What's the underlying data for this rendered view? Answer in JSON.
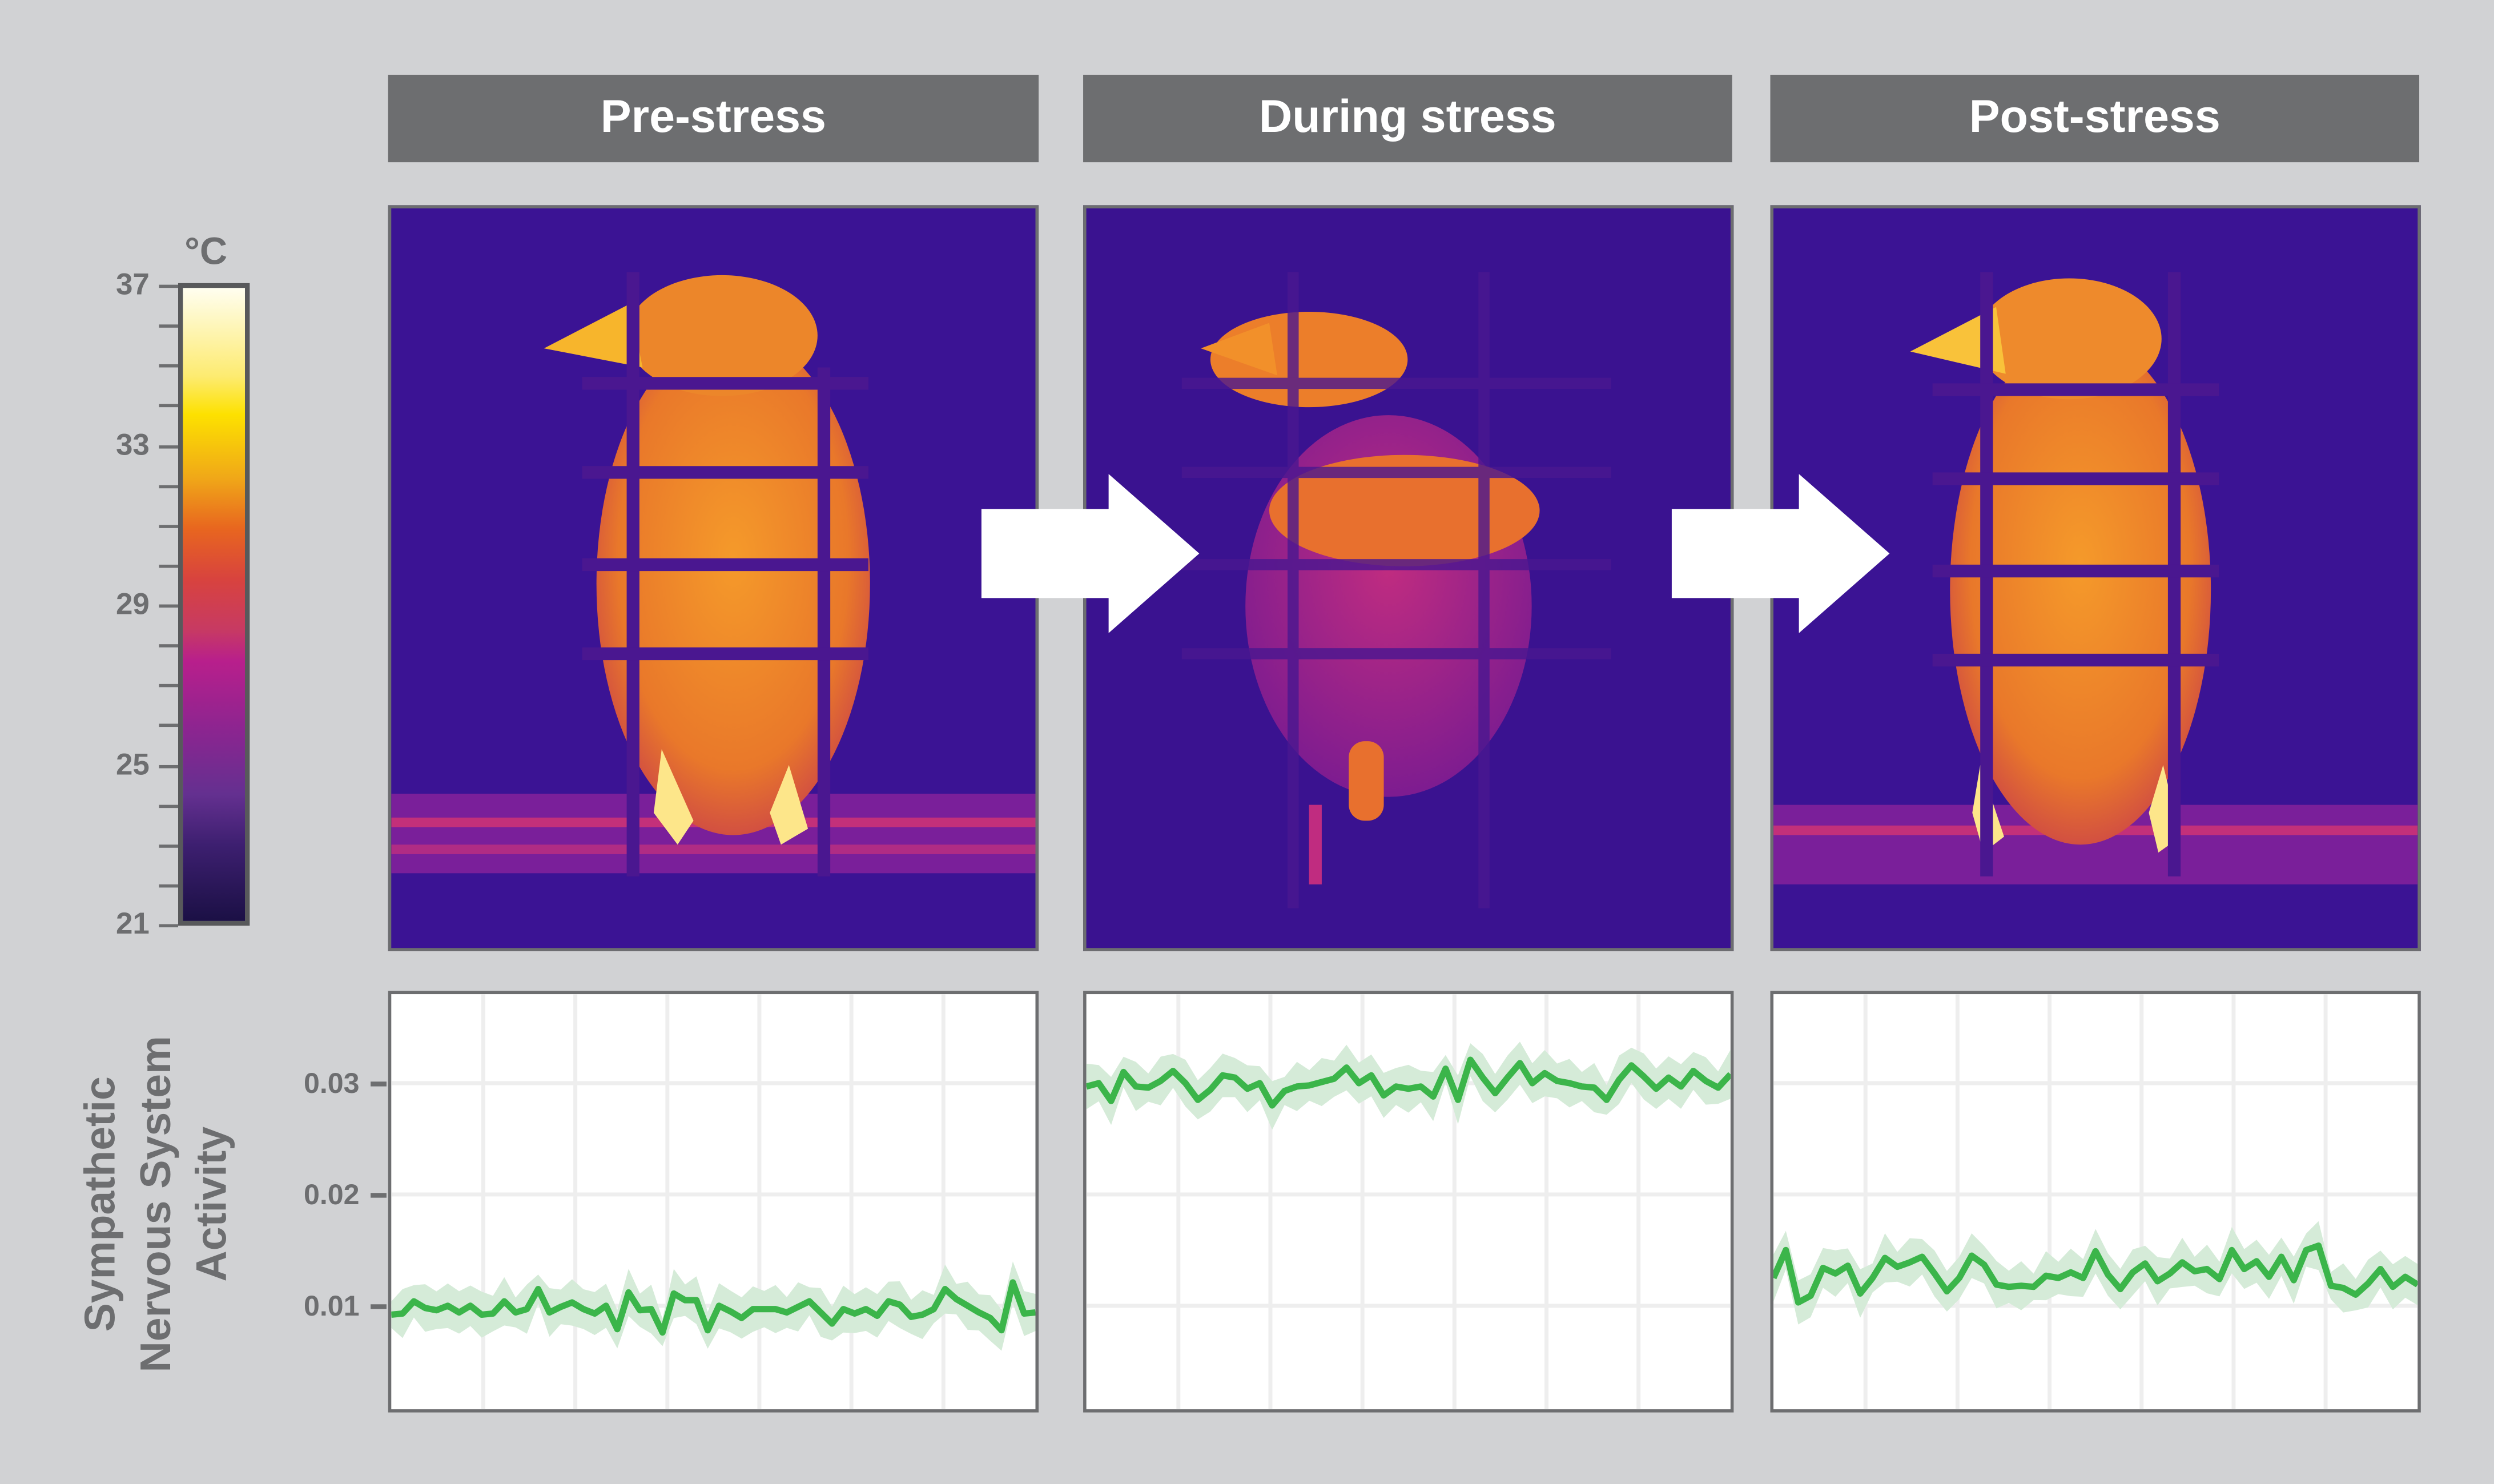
{
  "panels": [
    {
      "title": "Pre-stress"
    },
    {
      "title": "During stress"
    },
    {
      "title": "Post-stress"
    }
  ],
  "colorbar": {
    "unit": "°C",
    "tick_labels": [
      "37",
      "33",
      "29",
      "25",
      "21"
    ],
    "range": [
      21,
      37
    ],
    "colormap": "inferno"
  },
  "colors": {
    "line": "#3bb54a",
    "band": "#d5ebd8",
    "header_bg": "#6d6e70",
    "background": "#d1d2d4"
  },
  "chart_data": {
    "type": "line",
    "ylabel": [
      "Sympathetic",
      "Nervous System",
      "Activity"
    ],
    "ylim": [
      0.0007,
      0.038
    ],
    "yticks": [
      0.01,
      0.02,
      0.03
    ],
    "ytick_labels": [
      "0.01",
      "0.02",
      "0.03"
    ],
    "grid": true,
    "band_halfwidth": 0.0017,
    "series": [
      {
        "name": "Pre-stress",
        "values": [
          0.0092,
          0.0093,
          0.0104,
          0.0098,
          0.0096,
          0.01,
          0.0094,
          0.01,
          0.0092,
          0.0093,
          0.0104,
          0.0094,
          0.0097,
          0.0115,
          0.0094,
          0.0099,
          0.0103,
          0.0097,
          0.0093,
          0.01,
          0.0079,
          0.0112,
          0.0096,
          0.0097,
          0.0076,
          0.0111,
          0.0105,
          0.0105,
          0.0078,
          0.01,
          0.0095,
          0.0089,
          0.0097,
          0.0097,
          0.0097,
          0.0094,
          0.0099,
          0.0104,
          0.0094,
          0.0084,
          0.0097,
          0.0093,
          0.0097,
          0.0091,
          0.0104,
          0.0101,
          0.009,
          0.0092,
          0.0097,
          0.0115,
          0.0106,
          0.01,
          0.0094,
          0.0089,
          0.0078,
          0.0121,
          0.0093,
          0.0094
        ]
      },
      {
        "name": "During stress",
        "values": [
          0.0297,
          0.03,
          0.0284,
          0.031,
          0.0297,
          0.0296,
          0.0302,
          0.0311,
          0.03,
          0.0285,
          0.0294,
          0.0307,
          0.0305,
          0.0295,
          0.03,
          0.028,
          0.0293,
          0.0297,
          0.0298,
          0.0301,
          0.0304,
          0.0314,
          0.03,
          0.0307,
          0.0289,
          0.0297,
          0.0295,
          0.0297,
          0.0288,
          0.0313,
          0.0285,
          0.0321,
          0.0305,
          0.0291,
          0.0305,
          0.0318,
          0.03,
          0.0309,
          0.0302,
          0.03,
          0.0297,
          0.0296,
          0.0285,
          0.0303,
          0.0316,
          0.0306,
          0.0295,
          0.0305,
          0.0297,
          0.0311,
          0.0302,
          0.0296,
          0.0308
        ]
      },
      {
        "name": "Post-stress",
        "values": [
          0.0125,
          0.015,
          0.0103,
          0.0109,
          0.0134,
          0.0129,
          0.0136,
          0.0111,
          0.0125,
          0.0143,
          0.0135,
          0.0139,
          0.0144,
          0.0129,
          0.0113,
          0.0125,
          0.0145,
          0.0137,
          0.0119,
          0.0117,
          0.0118,
          0.0117,
          0.0127,
          0.0125,
          0.013,
          0.0125,
          0.0149,
          0.0128,
          0.0115,
          0.013,
          0.0138,
          0.0122,
          0.0129,
          0.0139,
          0.0131,
          0.0133,
          0.0124,
          0.015,
          0.0133,
          0.014,
          0.0126,
          0.0144,
          0.0123,
          0.015,
          0.0154,
          0.0118,
          0.0116,
          0.011,
          0.012,
          0.0133,
          0.0117,
          0.0126,
          0.0119
        ]
      }
    ]
  }
}
